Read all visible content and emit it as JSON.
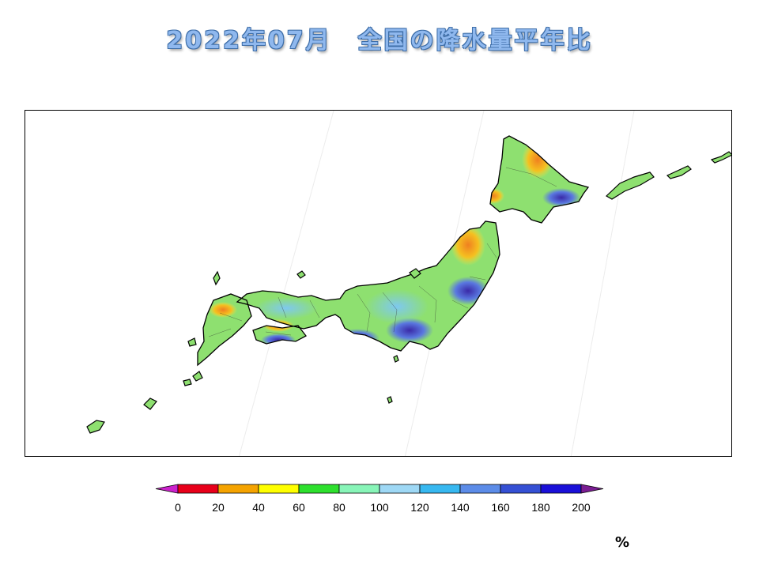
{
  "title": "2022年07月　全国の降水量平年比",
  "map": {
    "region": "Japan",
    "variable": "precipitation ratio to normal",
    "colors": {
      "neutral_land": "#8ee070",
      "high_ratio": "#4a5fd8",
      "low_ratio": "#f0a030",
      "outline": "#000000"
    }
  },
  "legend": {
    "unit": "%",
    "ticks": [
      "0",
      "20",
      "40",
      "60",
      "80",
      "100",
      "120",
      "140",
      "160",
      "180",
      "200"
    ],
    "under_color": "#cc22cc",
    "over_color": "#7a1d92",
    "bins": [
      {
        "from": 0,
        "to": 20,
        "color": "#e8001a"
      },
      {
        "from": 20,
        "to": 40,
        "color": "#f5a300"
      },
      {
        "from": 40,
        "to": 60,
        "color": "#ffff00"
      },
      {
        "from": 60,
        "to": 80,
        "color": "#2ee02e"
      },
      {
        "from": 80,
        "to": 100,
        "color": "#88f5b8"
      },
      {
        "from": 100,
        "to": 120,
        "color": "#9ed8f5"
      },
      {
        "from": 120,
        "to": 140,
        "color": "#37b8f0"
      },
      {
        "from": 140,
        "to": 160,
        "color": "#5c8ce8"
      },
      {
        "from": 160,
        "to": 180,
        "color": "#3550d4"
      },
      {
        "from": 180,
        "to": 200,
        "color": "#1a10d8"
      }
    ]
  }
}
